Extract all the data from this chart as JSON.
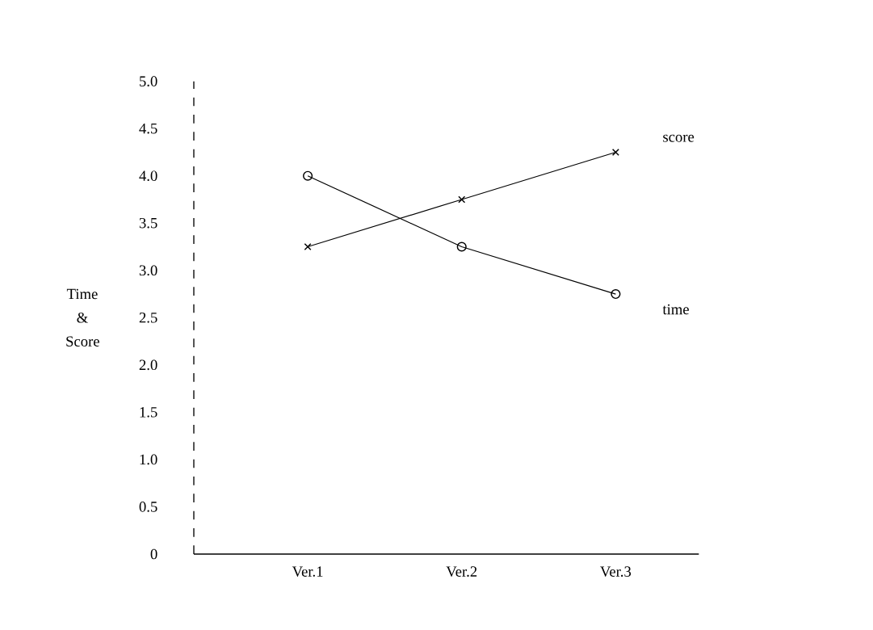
{
  "chart_data": {
    "type": "line",
    "ylabel": "Time & Score",
    "categories": [
      "Ver.1",
      "Ver.2",
      "Ver.3"
    ],
    "series": [
      {
        "name": "score",
        "color": "#000000",
        "marker": "cross",
        "values": [
          3.25,
          3.75,
          4.25
        ]
      },
      {
        "name": "time",
        "color": "#000000",
        "marker": "circle",
        "values": [
          4.0,
          3.25,
          2.75
        ]
      }
    ],
    "ylim": [
      0,
      5
    ],
    "yticks": [
      0,
      {
        "value": 0.5,
        "label": "0.5"
      },
      {
        "value": 1,
        "label": "1.0"
      },
      {
        "value": 1.5,
        "label": "1.5"
      },
      {
        "value": 2,
        "label": "2.0"
      },
      {
        "value": 2.5,
        "label": "2.5"
      },
      {
        "value": 3,
        "label": "3.0"
      },
      {
        "value": 3.5,
        "label": "3.5"
      },
      {
        "value": 4,
        "label": "4.0"
      },
      {
        "value": 4.5,
        "label": "4.5"
      },
      {
        "value": 5,
        "label": "5.0"
      }
    ],
    "grid": false,
    "line_style": "solid"
  }
}
